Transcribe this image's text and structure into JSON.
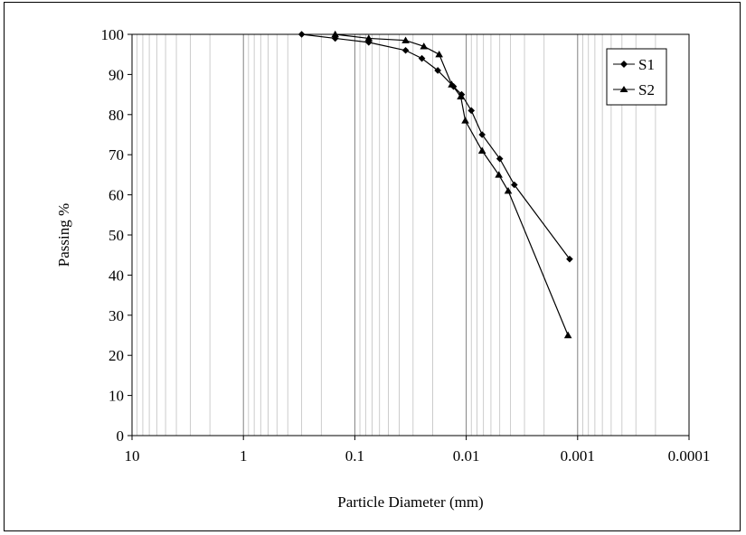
{
  "chart_data": {
    "type": "scatter",
    "title": "",
    "xlabel": "Particle Diameter (mm)",
    "ylabel": "Passing %",
    "x_scale": "log",
    "x_reversed": true,
    "xlim": [
      10,
      0.0001
    ],
    "ylim": [
      0,
      100
    ],
    "x_ticks": [
      10,
      1,
      0.1,
      0.01,
      0.001,
      0.0001
    ],
    "x_tick_labels": [
      "10",
      "1",
      "0.1",
      "0.01",
      "0.001",
      "0.0001"
    ],
    "y_ticks": [
      0,
      10,
      20,
      30,
      40,
      50,
      60,
      70,
      80,
      90,
      100
    ],
    "y_tick_labels": [
      "0",
      "10",
      "20",
      "30",
      "40",
      "50",
      "60",
      "70",
      "80",
      "90",
      "100"
    ],
    "grid": "vertical minor log gridlines",
    "legend_position": "top-right",
    "series": [
      {
        "name": "S1",
        "marker": "diamond",
        "points": [
          {
            "x": 0.3,
            "y": 100
          },
          {
            "x": 0.15,
            "y": 99
          },
          {
            "x": 0.075,
            "y": 98
          },
          {
            "x": 0.035,
            "y": 96
          },
          {
            "x": 0.025,
            "y": 94
          },
          {
            "x": 0.018,
            "y": 91
          },
          {
            "x": 0.013,
            "y": 87
          },
          {
            "x": 0.011,
            "y": 85
          },
          {
            "x": 0.009,
            "y": 81
          },
          {
            "x": 0.0072,
            "y": 75
          },
          {
            "x": 0.005,
            "y": 69
          },
          {
            "x": 0.0037,
            "y": 62.5
          },
          {
            "x": 0.00118,
            "y": 44
          }
        ]
      },
      {
        "name": "S2",
        "marker": "triangle",
        "points": [
          {
            "x": 0.15,
            "y": 100
          },
          {
            "x": 0.075,
            "y": 99
          },
          {
            "x": 0.035,
            "y": 98.5
          },
          {
            "x": 0.024,
            "y": 97
          },
          {
            "x": 0.0175,
            "y": 95
          },
          {
            "x": 0.0135,
            "y": 87.5
          },
          {
            "x": 0.0112,
            "y": 84.5
          },
          {
            "x": 0.0102,
            "y": 78.5
          },
          {
            "x": 0.0072,
            "y": 71
          },
          {
            "x": 0.0051,
            "y": 65
          },
          {
            "x": 0.0042,
            "y": 61
          },
          {
            "x": 0.00122,
            "y": 25
          }
        ]
      }
    ]
  }
}
